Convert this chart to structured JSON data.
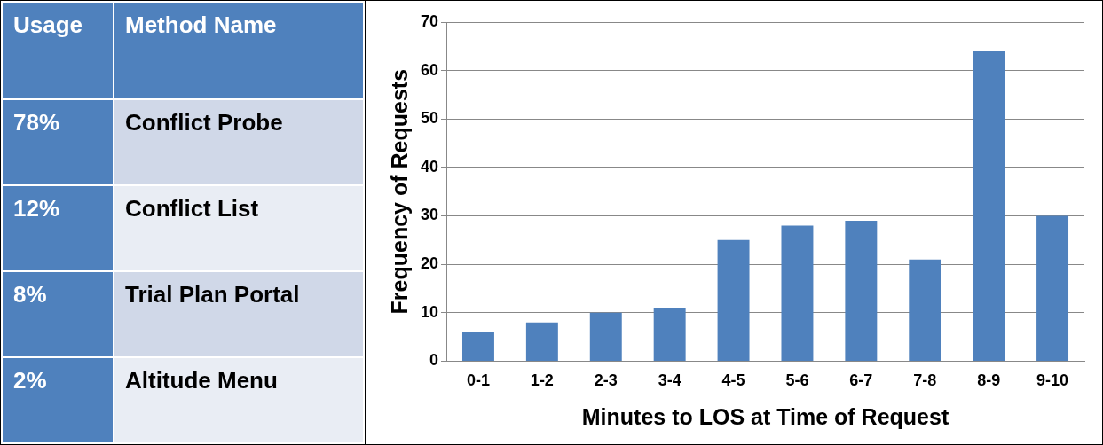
{
  "chart_data": [
    {
      "type": "other",
      "annotations": [
        "Usage",
        "Method Name"
      ],
      "categories": [
        "Conflict Probe",
        "Conflict List",
        "Trial Plan Portal",
        "Altitude Menu"
      ],
      "values": [
        78,
        12,
        8,
        2
      ],
      "value_labels": [
        "78%",
        "12%",
        "8%",
        "2%"
      ]
    },
    {
      "type": "bar",
      "xlabel": "Minutes to LOS at Time of Request",
      "ylabel": "Frequency of Requests",
      "categories": [
        "0-1",
        "1-2",
        "2-3",
        "3-4",
        "4-5",
        "5-6",
        "6-7",
        "7-8",
        "8-9",
        "9-10"
      ],
      "values": [
        6,
        8,
        10,
        11,
        25,
        28,
        29,
        21,
        64,
        30
      ],
      "color": "#4f81bd",
      "ylim": [
        0,
        70
      ],
      "yticks": [
        0,
        10,
        20,
        30,
        40,
        50,
        60,
        70
      ],
      "grid": "y",
      "legend": false
    }
  ]
}
